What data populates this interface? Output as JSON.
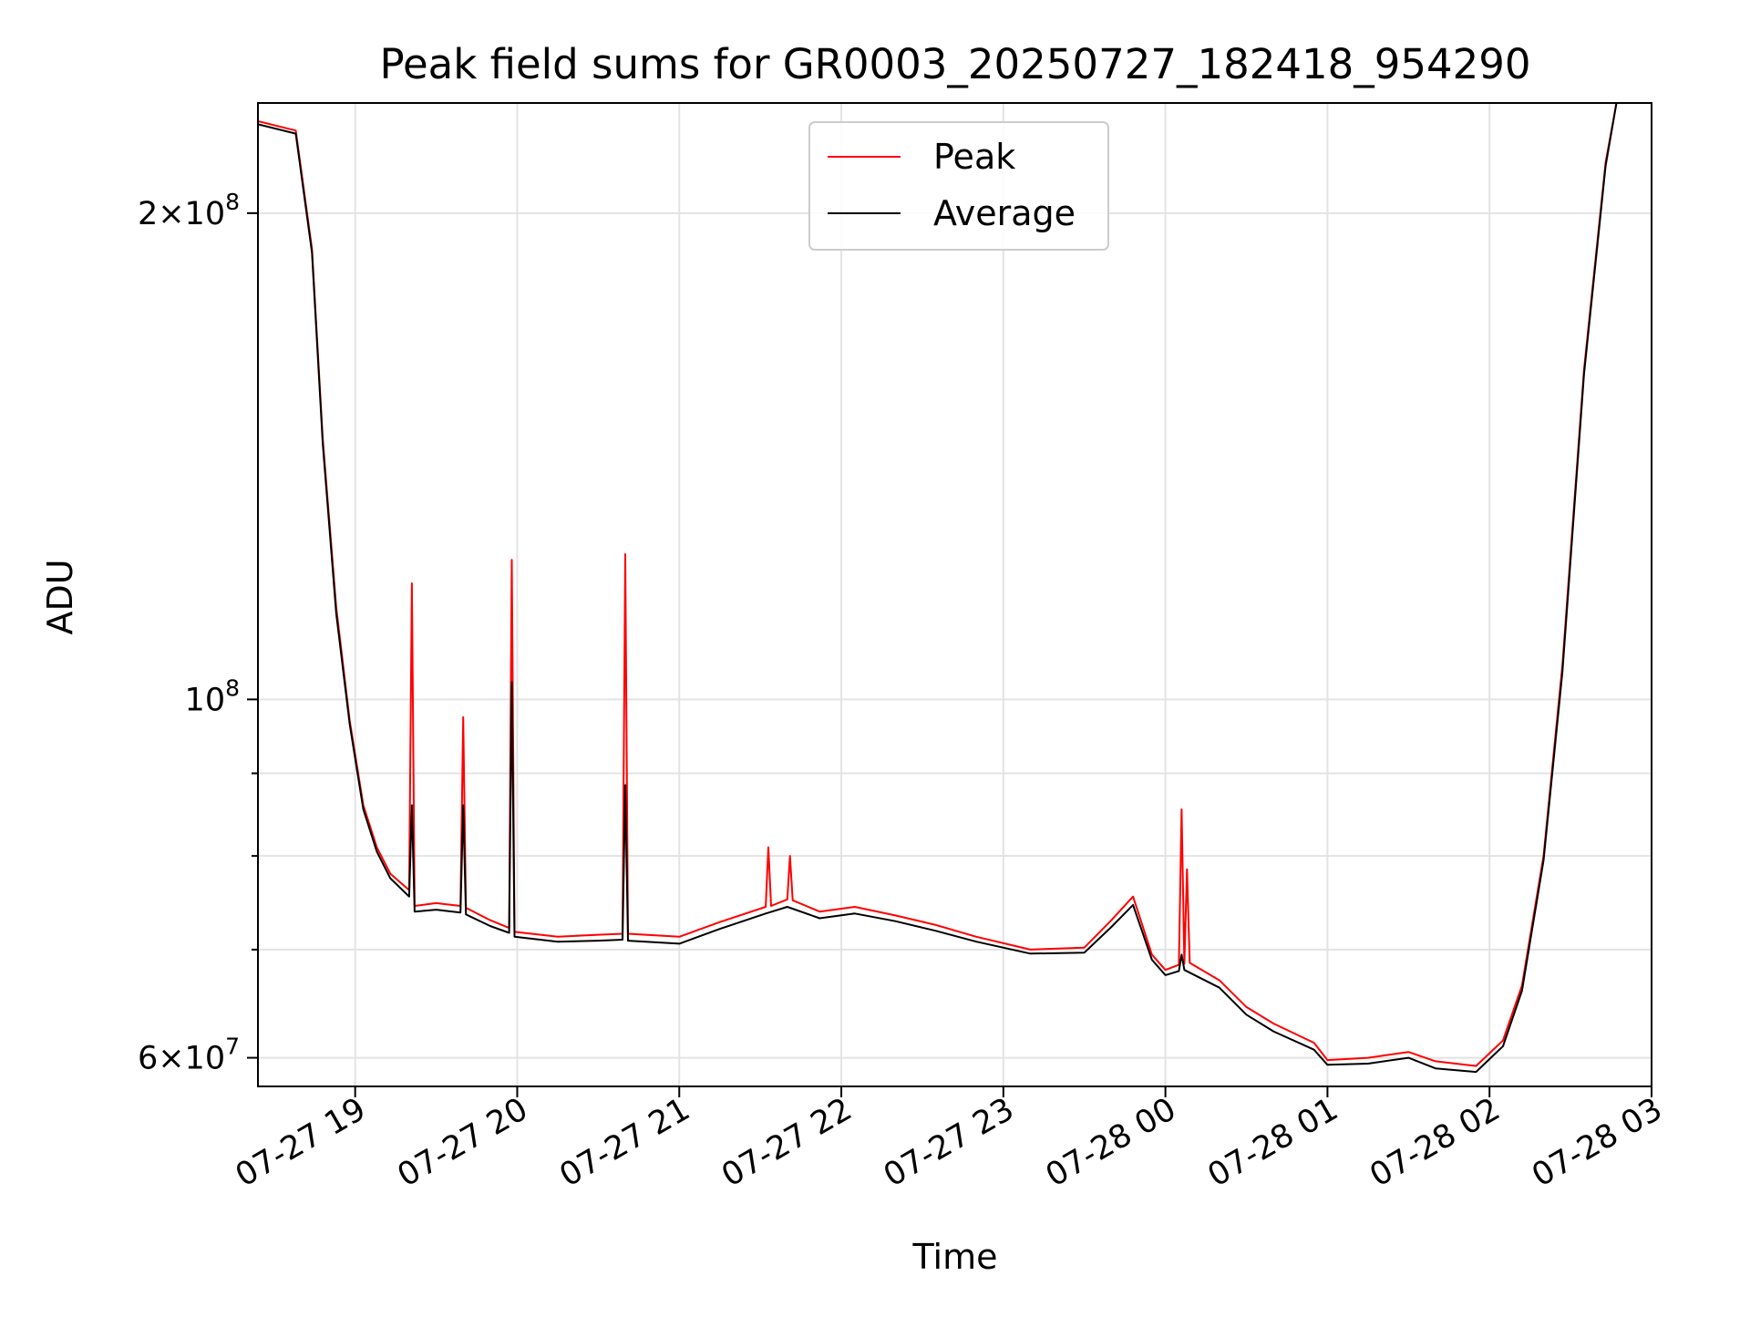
{
  "chart_data": {
    "type": "line",
    "title": "Peak field sums for GR0003_20250727_182418_954290",
    "xlabel": "Time",
    "ylabel": "ADU",
    "y_scale": "log",
    "grid": true,
    "legend_position": "top-center",
    "xlim": [
      "2025-07-27 18:24",
      "2025-07-28 03:00"
    ],
    "ylim": [
      57600000,
      234000000
    ],
    "x_ticks": [
      {
        "value": "2025-07-27 19:00",
        "label": "07-27 19"
      },
      {
        "value": "2025-07-27 20:00",
        "label": "07-27 20"
      },
      {
        "value": "2025-07-27 21:00",
        "label": "07-27 21"
      },
      {
        "value": "2025-07-27 22:00",
        "label": "07-27 22"
      },
      {
        "value": "2025-07-27 23:00",
        "label": "07-27 23"
      },
      {
        "value": "2025-07-28 00:00",
        "label": "07-28 00"
      },
      {
        "value": "2025-07-28 01:00",
        "label": "07-28 01"
      },
      {
        "value": "2025-07-28 02:00",
        "label": "07-28 02"
      },
      {
        "value": "2025-07-28 03:00",
        "label": "07-28 03"
      }
    ],
    "y_major_ticks": [
      {
        "value": 60000000,
        "mantissa": "6",
        "base": "10",
        "exponent": "7"
      },
      {
        "value": 100000000,
        "mantissa": "",
        "base": "10",
        "exponent": "8"
      },
      {
        "value": 200000000,
        "mantissa": "2",
        "base": "10",
        "exponent": "8"
      }
    ],
    "y_minor_ticks": [
      70000000,
      80000000,
      90000000
    ],
    "series": [
      {
        "name": "Peak",
        "color": "#ff0000",
        "points": [
          [
            "2025-07-27 18:24",
            228000000
          ],
          [
            "2025-07-27 18:38",
            225000000
          ],
          [
            "2025-07-27 18:44",
            190000000
          ],
          [
            "2025-07-27 18:48",
            145000000
          ],
          [
            "2025-07-27 18:53",
            114000000
          ],
          [
            "2025-07-27 18:58",
            97000000
          ],
          [
            "2025-07-27 19:03",
            86000000
          ],
          [
            "2025-07-27 19:08",
            81000000
          ],
          [
            "2025-07-27 19:13",
            78000000
          ],
          [
            "2025-07-27 19:20",
            76200000
          ],
          [
            "2025-07-27 19:21",
            118000000
          ],
          [
            "2025-07-27 19:22",
            74500000
          ],
          [
            "2025-07-27 19:30",
            74800000
          ],
          [
            "2025-07-27 19:39",
            74500000
          ],
          [
            "2025-07-27 19:40",
            97500000
          ],
          [
            "2025-07-27 19:41",
            74300000
          ],
          [
            "2025-07-27 19:50",
            73000000
          ],
          [
            "2025-07-27 19:57",
            72200000
          ],
          [
            "2025-07-27 19:58",
            122000000
          ],
          [
            "2025-07-27 19:59",
            71800000
          ],
          [
            "2025-07-27 20:15",
            71300000
          ],
          [
            "2025-07-27 20:30",
            71500000
          ],
          [
            "2025-07-27 20:39",
            71600000
          ],
          [
            "2025-07-27 20:40",
            123000000
          ],
          [
            "2025-07-27 20:41",
            71600000
          ],
          [
            "2025-07-27 21:00",
            71300000
          ],
          [
            "2025-07-27 21:15",
            72800000
          ],
          [
            "2025-07-27 21:32",
            74400000
          ],
          [
            "2025-07-27 21:33",
            81000000
          ],
          [
            "2025-07-27 21:34",
            74500000
          ],
          [
            "2025-07-27 21:40",
            75200000
          ],
          [
            "2025-07-27 21:41",
            80000000
          ],
          [
            "2025-07-27 21:42",
            75100000
          ],
          [
            "2025-07-27 21:52",
            73900000
          ],
          [
            "2025-07-27 22:05",
            74400000
          ],
          [
            "2025-07-27 22:20",
            73500000
          ],
          [
            "2025-07-27 22:35",
            72500000
          ],
          [
            "2025-07-27 22:50",
            71300000
          ],
          [
            "2025-07-27 23:10",
            70000000
          ],
          [
            "2025-07-27 23:30",
            70200000
          ],
          [
            "2025-07-27 23:40",
            73000000
          ],
          [
            "2025-07-27 23:48",
            75500000
          ],
          [
            "2025-07-27 23:55",
            69500000
          ],
          [
            "2025-07-28 00:00",
            68000000
          ],
          [
            "2025-07-28 00:05",
            68500000
          ],
          [
            "2025-07-28 00:06",
            85500000
          ],
          [
            "2025-07-28 00:07",
            68600000
          ],
          [
            "2025-07-28 00:08",
            78500000
          ],
          [
            "2025-07-28 00:09",
            68700000
          ],
          [
            "2025-07-28 00:20",
            67000000
          ],
          [
            "2025-07-28 00:30",
            64500000
          ],
          [
            "2025-07-28 00:40",
            63000000
          ],
          [
            "2025-07-28 00:55",
            61300000
          ],
          [
            "2025-07-28 01:00",
            59800000
          ],
          [
            "2025-07-28 01:15",
            60000000
          ],
          [
            "2025-07-28 01:30",
            60500000
          ],
          [
            "2025-07-28 01:40",
            59700000
          ],
          [
            "2025-07-28 01:55",
            59300000
          ],
          [
            "2025-07-28 02:05",
            61500000
          ],
          [
            "2025-07-28 02:12",
            66500000
          ],
          [
            "2025-07-28 02:20",
            80000000
          ],
          [
            "2025-07-28 02:27",
            105000000
          ],
          [
            "2025-07-28 02:35",
            160000000
          ],
          [
            "2025-07-28 02:43",
            215000000
          ],
          [
            "2025-07-28 02:47",
            234000000
          ]
        ]
      },
      {
        "name": "Average",
        "color": "#000000",
        "points": [
          [
            "2025-07-27 18:24",
            227000000
          ],
          [
            "2025-07-27 18:38",
            224000000
          ],
          [
            "2025-07-27 18:44",
            189000000
          ],
          [
            "2025-07-27 18:48",
            144000000
          ],
          [
            "2025-07-27 18:53",
            113000000
          ],
          [
            "2025-07-27 18:58",
            96500000
          ],
          [
            "2025-07-27 19:03",
            85500000
          ],
          [
            "2025-07-27 19:08",
            80500000
          ],
          [
            "2025-07-27 19:13",
            77500000
          ],
          [
            "2025-07-27 19:20",
            75500000
          ],
          [
            "2025-07-27 19:21",
            86000000
          ],
          [
            "2025-07-27 19:22",
            73900000
          ],
          [
            "2025-07-27 19:30",
            74100000
          ],
          [
            "2025-07-27 19:39",
            73800000
          ],
          [
            "2025-07-27 19:40",
            86000000
          ],
          [
            "2025-07-27 19:41",
            73600000
          ],
          [
            "2025-07-27 19:50",
            72400000
          ],
          [
            "2025-07-27 19:57",
            71700000
          ],
          [
            "2025-07-27 19:58",
            102500000
          ],
          [
            "2025-07-27 19:59",
            71300000
          ],
          [
            "2025-07-27 20:15",
            70800000
          ],
          [
            "2025-07-27 20:30",
            70900000
          ],
          [
            "2025-07-27 20:39",
            71000000
          ],
          [
            "2025-07-27 20:40",
            88500000
          ],
          [
            "2025-07-27 20:41",
            70900000
          ],
          [
            "2025-07-27 21:00",
            70600000
          ],
          [
            "2025-07-27 21:15",
            72100000
          ],
          [
            "2025-07-27 21:32",
            73700000
          ],
          [
            "2025-07-27 21:40",
            74400000
          ],
          [
            "2025-07-27 21:52",
            73200000
          ],
          [
            "2025-07-27 22:05",
            73700000
          ],
          [
            "2025-07-27 22:20",
            72900000
          ],
          [
            "2025-07-27 22:35",
            71900000
          ],
          [
            "2025-07-27 22:50",
            70800000
          ],
          [
            "2025-07-27 23:10",
            69600000
          ],
          [
            "2025-07-27 23:30",
            69700000
          ],
          [
            "2025-07-27 23:40",
            72300000
          ],
          [
            "2025-07-27 23:48",
            74600000
          ],
          [
            "2025-07-27 23:55",
            69000000
          ],
          [
            "2025-07-28 00:00",
            67500000
          ],
          [
            "2025-07-28 00:05",
            67900000
          ],
          [
            "2025-07-28 00:06",
            69500000
          ],
          [
            "2025-07-28 00:07",
            68000000
          ],
          [
            "2025-07-28 00:20",
            66300000
          ],
          [
            "2025-07-28 00:30",
            63800000
          ],
          [
            "2025-07-28 00:40",
            62300000
          ],
          [
            "2025-07-28 00:55",
            60700000
          ],
          [
            "2025-07-28 01:00",
            59400000
          ],
          [
            "2025-07-28 01:15",
            59500000
          ],
          [
            "2025-07-28 01:30",
            60000000
          ],
          [
            "2025-07-28 01:40",
            59100000
          ],
          [
            "2025-07-28 01:55",
            58800000
          ],
          [
            "2025-07-28 02:05",
            61000000
          ],
          [
            "2025-07-28 02:12",
            66000000
          ],
          [
            "2025-07-28 02:20",
            79500000
          ],
          [
            "2025-07-28 02:27",
            104000000
          ],
          [
            "2025-07-28 02:35",
            159000000
          ],
          [
            "2025-07-28 02:43",
            214000000
          ],
          [
            "2025-07-28 02:47",
            234000000
          ]
        ]
      }
    ]
  }
}
